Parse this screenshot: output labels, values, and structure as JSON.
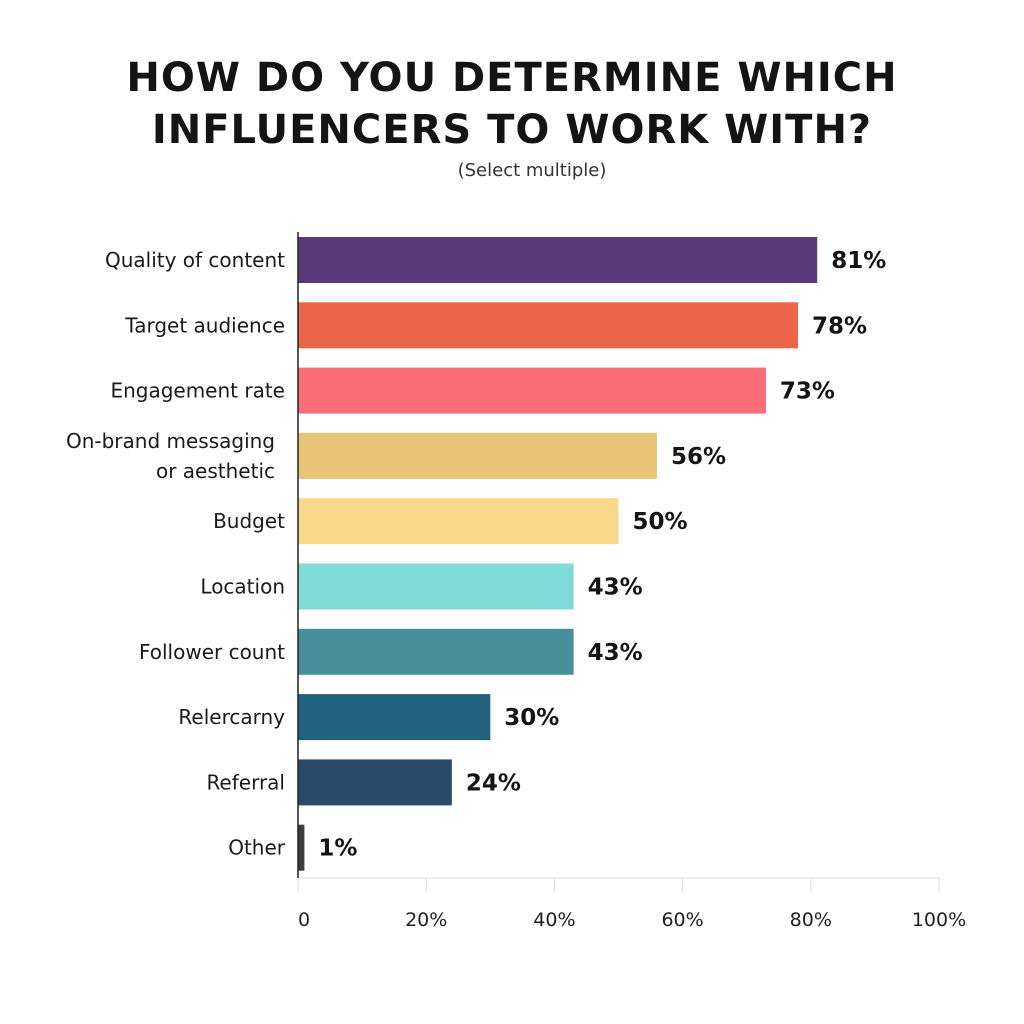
{
  "chart_data": {
    "type": "bar",
    "orientation": "horizontal",
    "title_lines": [
      "HOW DO YOU DETERMINE WHICH",
      "INFLUENCERS TO WORK WITH?"
    ],
    "subtitle": "(Select multiple)",
    "categories": [
      [
        "Quality of content"
      ],
      [
        "Target audience"
      ],
      [
        "Engagement rate"
      ],
      [
        "On-brand messaging",
        "or aesthetic"
      ],
      [
        "Budget"
      ],
      [
        "Location"
      ],
      [
        "Follower count"
      ],
      [
        "Relercarny"
      ],
      [
        "Referral"
      ],
      [
        "Other"
      ]
    ],
    "values": [
      81,
      78,
      73,
      56,
      50,
      43,
      43,
      30,
      24,
      1
    ],
    "value_labels": [
      "81%",
      "78%",
      "73%",
      "56%",
      "50%",
      "43%",
      "43%",
      "30%",
      "24%",
      "1%"
    ],
    "colors": [
      "#59397a",
      "#ec6549",
      "#fb6e78",
      "#e8c477",
      "#f8d98c",
      "#82dbd7",
      "#478f9a",
      "#21627f",
      "#2a4a6a",
      "#3d3d3d"
    ],
    "xlim": [
      0,
      100
    ],
    "xticks": [
      0,
      20,
      40,
      60,
      80,
      100
    ],
    "xtick_labels": [
      "0",
      "20%",
      "40%",
      "60%",
      "80%",
      "100%"
    ],
    "grid": "vertical ticks only",
    "legend": "none"
  }
}
